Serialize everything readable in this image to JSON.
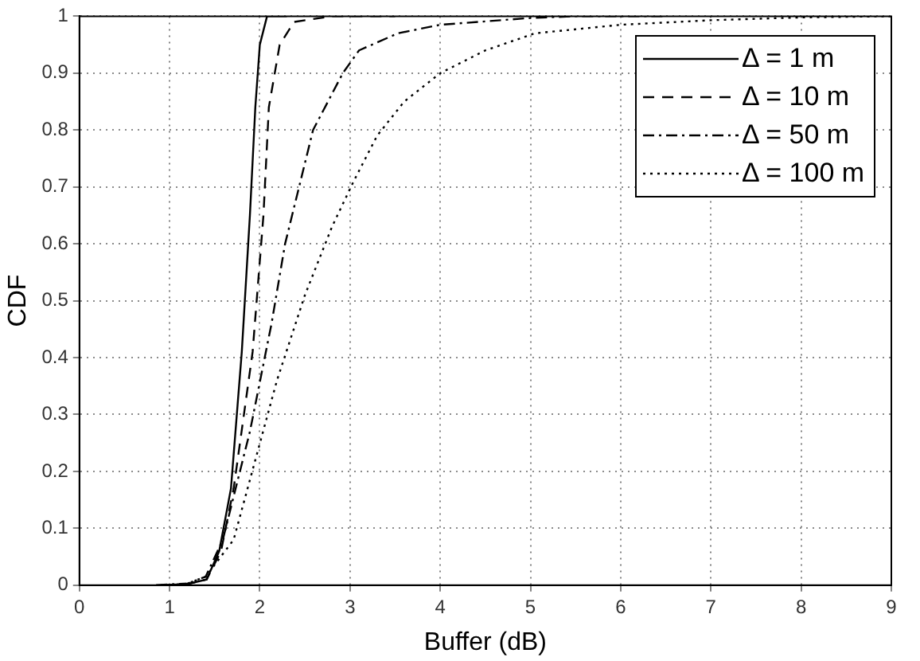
{
  "chart_data": {
    "type": "line",
    "xlabel": "Buffer (dB)",
    "ylabel": "CDF",
    "xlim": [
      0,
      9
    ],
    "ylim": [
      0,
      1
    ],
    "xticks": [
      0,
      1,
      2,
      3,
      4,
      5,
      6,
      7,
      8,
      9
    ],
    "yticks": [
      0,
      0.1,
      0.2,
      0.3,
      0.4,
      0.5,
      0.6,
      0.7,
      0.8,
      0.9,
      1
    ],
    "grid": true,
    "legend": "top right",
    "marker": "none",
    "series": [
      {
        "name": "Δ = 1 m",
        "color": "#000000",
        "line_style": "solid",
        "x": [
          0.9,
          1.2,
          1.41,
          1.55,
          1.68,
          1.8,
          1.89,
          1.95,
          2.0,
          2.08,
          2.3
        ],
        "values": [
          0,
          0.002,
          0.01,
          0.06,
          0.17,
          0.41,
          0.65,
          0.84,
          0.95,
          1,
          1
        ]
      },
      {
        "name": "Δ = 10 m",
        "color": "#000000",
        "line_style": "dashed",
        "x": [
          0.95,
          1.2,
          1.41,
          1.57,
          1.71,
          1.92,
          2.04,
          2.1,
          2.22,
          2.38,
          2.8,
          3.5
        ],
        "values": [
          0,
          0.002,
          0.01,
          0.06,
          0.17,
          0.41,
          0.65,
          0.84,
          0.95,
          0.99,
          1,
          1
        ]
      },
      {
        "name": "Δ = 50 m",
        "color": "#000000",
        "line_style": "dashdot",
        "x": [
          0.85,
          1.2,
          1.4,
          1.59,
          1.89,
          2.13,
          2.28,
          2.59,
          2.92,
          3.1,
          3.53,
          4,
          5,
          5.5,
          6.5
        ],
        "values": [
          0,
          0.003,
          0.015,
          0.08,
          0.27,
          0.46,
          0.6,
          0.8,
          0.9,
          0.94,
          0.97,
          0.985,
          0.997,
          1,
          1
        ]
      },
      {
        "name": "Δ = 100 m",
        "color": "#000000",
        "line_style": "dotted",
        "x": [
          1.0,
          1.2,
          1.4,
          1.71,
          1.95,
          2.19,
          2.5,
          2.8,
          3.04,
          3.3,
          3.6,
          4,
          4.5,
          5.05,
          6,
          7,
          8,
          9
        ],
        "values": [
          0,
          0.003,
          0.015,
          0.08,
          0.22,
          0.36,
          0.51,
          0.63,
          0.71,
          0.79,
          0.85,
          0.9,
          0.94,
          0.97,
          0.985,
          0.993,
          0.998,
          1
        ]
      }
    ]
  }
}
